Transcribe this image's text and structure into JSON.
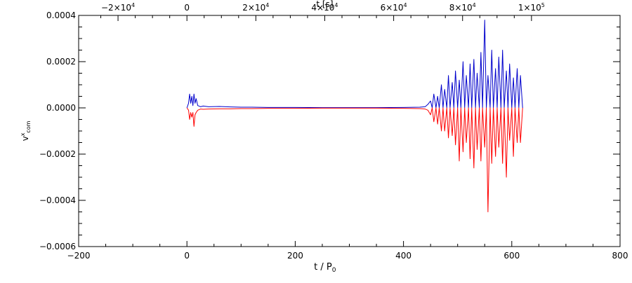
{
  "chart_data": {
    "type": "line",
    "xlabel": "t / P",
    "xlabel_sub": "0",
    "ylabel": "v",
    "ylabel_sup": "x",
    "ylabel_sub": "com",
    "xlim": [
      -200,
      800
    ],
    "ylim": [
      -0.0006,
      0.0004
    ],
    "x_ticks": [
      -200,
      0,
      200,
      400,
      600,
      800
    ],
    "x_tick_labels": [
      "−200",
      "0",
      "200",
      "400",
      "600",
      "800"
    ],
    "y_ticks": [
      -0.0006,
      -0.0004,
      -0.0002,
      0.0,
      0.0002,
      0.0004
    ],
    "y_tick_labels": [
      "−0.0006",
      "−0.0004",
      "−0.0002",
      "0.0000",
      "0.0002",
      "0.0004"
    ],
    "top_axis": {
      "label": "t [s]",
      "ticks": [
        -20000,
        0,
        20000,
        40000,
        60000,
        80000,
        100000
      ],
      "tick_labels": [
        {
          "mant": "−2×10",
          "exp": "4"
        },
        {
          "mant": "0",
          "exp": ""
        },
        {
          "mant": "2×10",
          "exp": "4"
        },
        {
          "mant": "4×10",
          "exp": "4"
        },
        {
          "mant": "6×10",
          "exp": "4"
        },
        {
          "mant": "8×10",
          "exp": "4"
        },
        {
          "mant": "1×10",
          "exp": "5"
        }
      ],
      "x_per_second": 0.006364
    },
    "grid": false,
    "legend": false,
    "series": [
      {
        "color": "#0000cc",
        "x": [
          0,
          3,
          5,
          7,
          9,
          11,
          13,
          15,
          17,
          20,
          25,
          30,
          40,
          60,
          80,
          100,
          120,
          150,
          180,
          200,
          250,
          300,
          350,
          400,
          430,
          440,
          445,
          450,
          453,
          456,
          460,
          463,
          466,
          470,
          473,
          476,
          480,
          483,
          486,
          490,
          493,
          496,
          500,
          503,
          506,
          510,
          513,
          516,
          520,
          523,
          526,
          530,
          533,
          536,
          540,
          543,
          546,
          550,
          553,
          556,
          560,
          563,
          566,
          570,
          573,
          576,
          580,
          583,
          586,
          590,
          593,
          596,
          600,
          603,
          606,
          610,
          613,
          616,
          620
        ],
        "y": [
          0,
          2e-05,
          6e-05,
          2e-05,
          5e-05,
          1e-05,
          6e-05,
          2e-05,
          4e-05,
          1e-05,
          5e-06,
          8e-06,
          5e-06,
          6e-06,
          4e-06,
          3e-06,
          3e-06,
          2e-06,
          2e-06,
          2e-06,
          1e-06,
          1e-06,
          1e-06,
          2e-06,
          3e-06,
          5e-06,
          1.5e-05,
          3e-05,
          0.0,
          6e-05,
          0.0,
          5e-05,
          0.0,
          0.0001,
          0.0,
          8e-05,
          0.0,
          0.00014,
          0.0,
          0.00011,
          0.0,
          0.00016,
          0.0,
          0.00012,
          0.0,
          0.0002,
          0.0,
          0.00014,
          0.0,
          0.00019,
          0.0,
          0.00021,
          0.0,
          0.00015,
          0.0,
          0.00024,
          0.0,
          0.00038,
          0.0,
          0.00014,
          0.0,
          0.00025,
          0.0,
          0.00017,
          0.0,
          0.00022,
          0.0,
          0.00025,
          0.0,
          0.00016,
          0.0,
          0.00019,
          0.0,
          0.00013,
          0.0,
          0.00017,
          0.0,
          0.00014,
          0.0
        ]
      },
      {
        "color": "#ff0000",
        "x": [
          0,
          3,
          5,
          7,
          9,
          11,
          13,
          15,
          17,
          20,
          25,
          30,
          40,
          60,
          80,
          100,
          120,
          150,
          180,
          200,
          250,
          300,
          350,
          400,
          430,
          440,
          445,
          450,
          453,
          456,
          460,
          463,
          466,
          470,
          473,
          476,
          480,
          483,
          486,
          490,
          493,
          496,
          500,
          503,
          506,
          510,
          513,
          516,
          520,
          523,
          526,
          530,
          533,
          536,
          540,
          543,
          546,
          550,
          553,
          556,
          560,
          563,
          566,
          570,
          573,
          576,
          580,
          583,
          586,
          590,
          593,
          596,
          600,
          603,
          606,
          610,
          613,
          616,
          620
        ],
        "y": [
          0,
          -1e-05,
          -5e-05,
          -2e-05,
          -4e-05,
          -2e-05,
          -8e-05,
          -3e-05,
          -2e-05,
          -1e-05,
          -5e-06,
          -6e-06,
          -5e-06,
          -4e-06,
          -4e-06,
          -3e-06,
          -3e-06,
          -2e-06,
          -2e-06,
          -2e-06,
          -1e-06,
          -1e-06,
          -1e-06,
          -2e-06,
          -3e-06,
          -5e-06,
          -1e-05,
          -3e-05,
          0.0,
          -6e-05,
          0.0,
          -7e-05,
          0.0,
          -0.0001,
          0.0,
          -0.0001,
          0.0,
          -0.00013,
          0.0,
          -0.00012,
          0.0,
          -0.00016,
          0.0,
          -0.00023,
          0.0,
          -0.00019,
          0.0,
          -0.00015,
          0.0,
          -0.00022,
          0.0,
          -0.00026,
          0.0,
          -0.00018,
          0.0,
          -0.00023,
          0.0,
          -0.00017,
          0.0,
          -0.00045,
          0.0,
          -0.00024,
          0.0,
          -0.00021,
          0.0,
          -0.00017,
          0.0,
          -0.00024,
          0.0,
          -0.0003,
          0.0,
          -0.00014,
          0.0,
          -0.00021,
          0.0,
          -0.00015,
          0.0,
          -0.00015,
          0.0
        ]
      }
    ]
  }
}
